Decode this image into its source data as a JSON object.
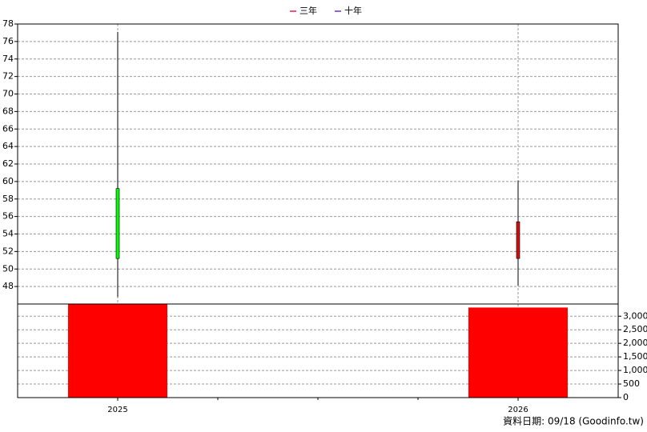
{
  "chart_data": [
    {
      "type": "candlestick",
      "categories": [
        "2025",
        "2026"
      ],
      "open": [
        59.2,
        51.2
      ],
      "high": [
        77.1,
        60.1
      ],
      "low": [
        46.8,
        48.1
      ],
      "close": [
        51.2,
        55.4
      ],
      "up_color": "#d01010",
      "down_color": "#00ff00",
      "ylim": [
        46,
        78
      ],
      "yticks": [
        48,
        50,
        52,
        54,
        56,
        58,
        60,
        62,
        64,
        66,
        68,
        70,
        72,
        74,
        76,
        78
      ],
      "grid": true,
      "series": [
        {
          "name": "三年",
          "color": "#e0204a",
          "values": [
            null,
            null
          ]
        },
        {
          "name": "十年",
          "color": "#7030c0",
          "values": [
            null,
            null
          ]
        }
      ],
      "legend": "top"
    },
    {
      "type": "bar",
      "categories": [
        "2025",
        "2026"
      ],
      "values": [
        3450,
        3320
      ],
      "color": "#ff0000",
      "ylim": [
        0,
        3450
      ],
      "yticks": [
        0,
        500,
        {
          "value": 1000,
          "label": "1,000"
        },
        {
          "value": 1500,
          "label": "1,500"
        },
        {
          "value": 2000,
          "label": "2,000"
        },
        {
          "value": 2500,
          "label": "2,500"
        },
        {
          "value": 3000,
          "label": "3,000"
        }
      ],
      "grid": true,
      "footnote": "資料日期: 09/18  (Goodinfo.tw)"
    }
  ]
}
